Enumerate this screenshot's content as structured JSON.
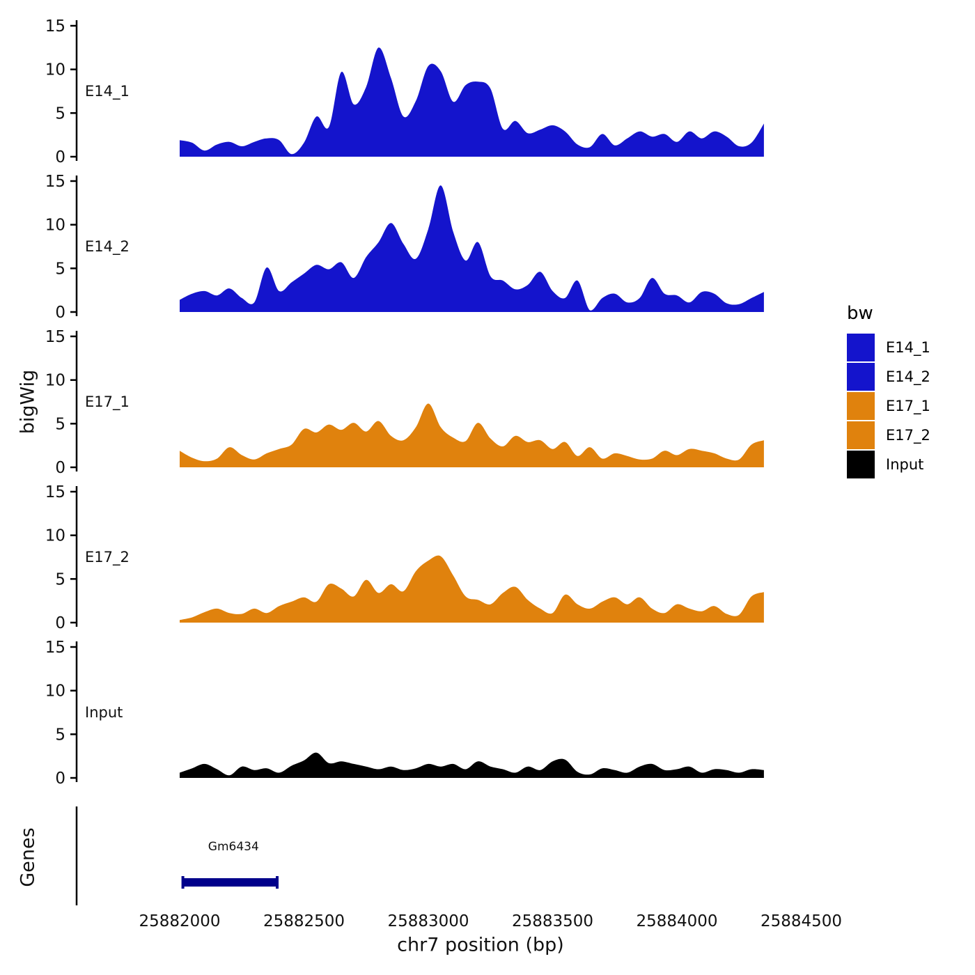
{
  "figure": {
    "ylabel_tracks": "bigWig",
    "ylabel_genes": "Genes",
    "xlabel": "chr7 position (bp)",
    "x_ticks": [
      25882000,
      25882500,
      25883000,
      25883500,
      25884000,
      25884500
    ],
    "y_ticks": [
      0,
      5,
      10,
      15
    ],
    "axis_color": "#000000"
  },
  "legend": {
    "title": "bw",
    "items": [
      {
        "label": "E14_1",
        "color": "#1414CC"
      },
      {
        "label": "E14_2",
        "color": "#1414CC"
      },
      {
        "label": "E17_1",
        "color": "#E0820D"
      },
      {
        "label": "E17_2",
        "color": "#E0820D"
      },
      {
        "label": "Input",
        "color": "#000000"
      }
    ]
  },
  "gene": {
    "name": "Gm6434",
    "start": 25882010,
    "end": 25882395,
    "color": "#00008B"
  },
  "chart_data": {
    "type": "area",
    "title": "",
    "xlabel": "chr7 position (bp)",
    "ylabel": "bigWig",
    "x_range": [
      25882000,
      25884500
    ],
    "x_start": 25882000,
    "x_step": 50,
    "ylim": [
      0,
      15
    ],
    "series": [
      {
        "name": "E14_1",
        "color": "#1414CC",
        "values": [
          1.9,
          1.6,
          0.7,
          1.4,
          1.7,
          1.2,
          1.7,
          2.1,
          1.9,
          0.3,
          1.6,
          4.6,
          3.4,
          9.7,
          6.0,
          8.0,
          12.5,
          9.0,
          4.6,
          6.4,
          10.4,
          9.8,
          6.3,
          8.2,
          8.6,
          7.8,
          3.2,
          4.1,
          2.7,
          3.1,
          3.6,
          2.9,
          1.4,
          1.1,
          2.6,
          1.3,
          2.1,
          2.9,
          2.3,
          2.6,
          1.7,
          2.9,
          2.1,
          2.9,
          2.3,
          1.2,
          1.6,
          3.8
        ]
      },
      {
        "name": "E14_2",
        "color": "#1414CC",
        "values": [
          1.4,
          2.1,
          2.4,
          1.9,
          2.7,
          1.6,
          1.1,
          5.1,
          2.4,
          3.4,
          4.4,
          5.4,
          4.9,
          5.7,
          3.9,
          6.3,
          8.0,
          10.2,
          7.8,
          6.1,
          9.5,
          14.5,
          9.2,
          5.9,
          8.0,
          4.1,
          3.6,
          2.6,
          3.1,
          4.6,
          2.4,
          1.6,
          3.6,
          0.2,
          1.6,
          2.1,
          1.1,
          1.6,
          3.9,
          2.1,
          1.9,
          1.1,
          2.3,
          2.1,
          1.0,
          0.9,
          1.6,
          2.3
        ]
      },
      {
        "name": "E17_1",
        "color": "#E0820D",
        "values": [
          1.9,
          1.1,
          0.7,
          1.0,
          2.3,
          1.4,
          0.9,
          1.6,
          2.1,
          2.6,
          4.4,
          4.0,
          4.9,
          4.3,
          5.1,
          4.1,
          5.3,
          3.6,
          3.1,
          4.6,
          7.3,
          4.6,
          3.4,
          3.0,
          5.1,
          3.3,
          2.4,
          3.6,
          2.9,
          3.1,
          2.1,
          2.9,
          1.3,
          2.3,
          1.0,
          1.6,
          1.3,
          0.9,
          1.0,
          1.9,
          1.4,
          2.1,
          1.9,
          1.6,
          1.0,
          0.9,
          2.6,
          3.1
        ]
      },
      {
        "name": "E17_2",
        "color": "#E0820D",
        "values": [
          0.3,
          0.6,
          1.2,
          1.6,
          1.1,
          1.0,
          1.6,
          1.1,
          1.9,
          2.4,
          2.9,
          2.4,
          4.4,
          3.9,
          3.0,
          4.9,
          3.4,
          4.4,
          3.6,
          5.9,
          7.1,
          7.6,
          5.4,
          3.0,
          2.6,
          2.1,
          3.4,
          4.1,
          2.6,
          1.6,
          1.1,
          3.2,
          2.1,
          1.6,
          2.4,
          2.9,
          2.1,
          2.9,
          1.6,
          1.1,
          2.1,
          1.6,
          1.3,
          1.9,
          1.0,
          0.9,
          3.0,
          3.5
        ]
      },
      {
        "name": "Input",
        "color": "#000000",
        "values": [
          0.6,
          1.1,
          1.6,
          1.0,
          0.3,
          1.3,
          0.9,
          1.1,
          0.6,
          1.4,
          2.0,
          2.9,
          1.7,
          1.9,
          1.6,
          1.3,
          1.0,
          1.3,
          0.9,
          1.1,
          1.6,
          1.3,
          1.6,
          1.0,
          1.9,
          1.3,
          1.0,
          0.6,
          1.3,
          0.9,
          1.9,
          2.1,
          0.7,
          0.4,
          1.1,
          0.9,
          0.6,
          1.3,
          1.6,
          0.9,
          1.0,
          1.3,
          0.6,
          1.0,
          0.9,
          0.6,
          1.0,
          0.9
        ]
      }
    ]
  }
}
